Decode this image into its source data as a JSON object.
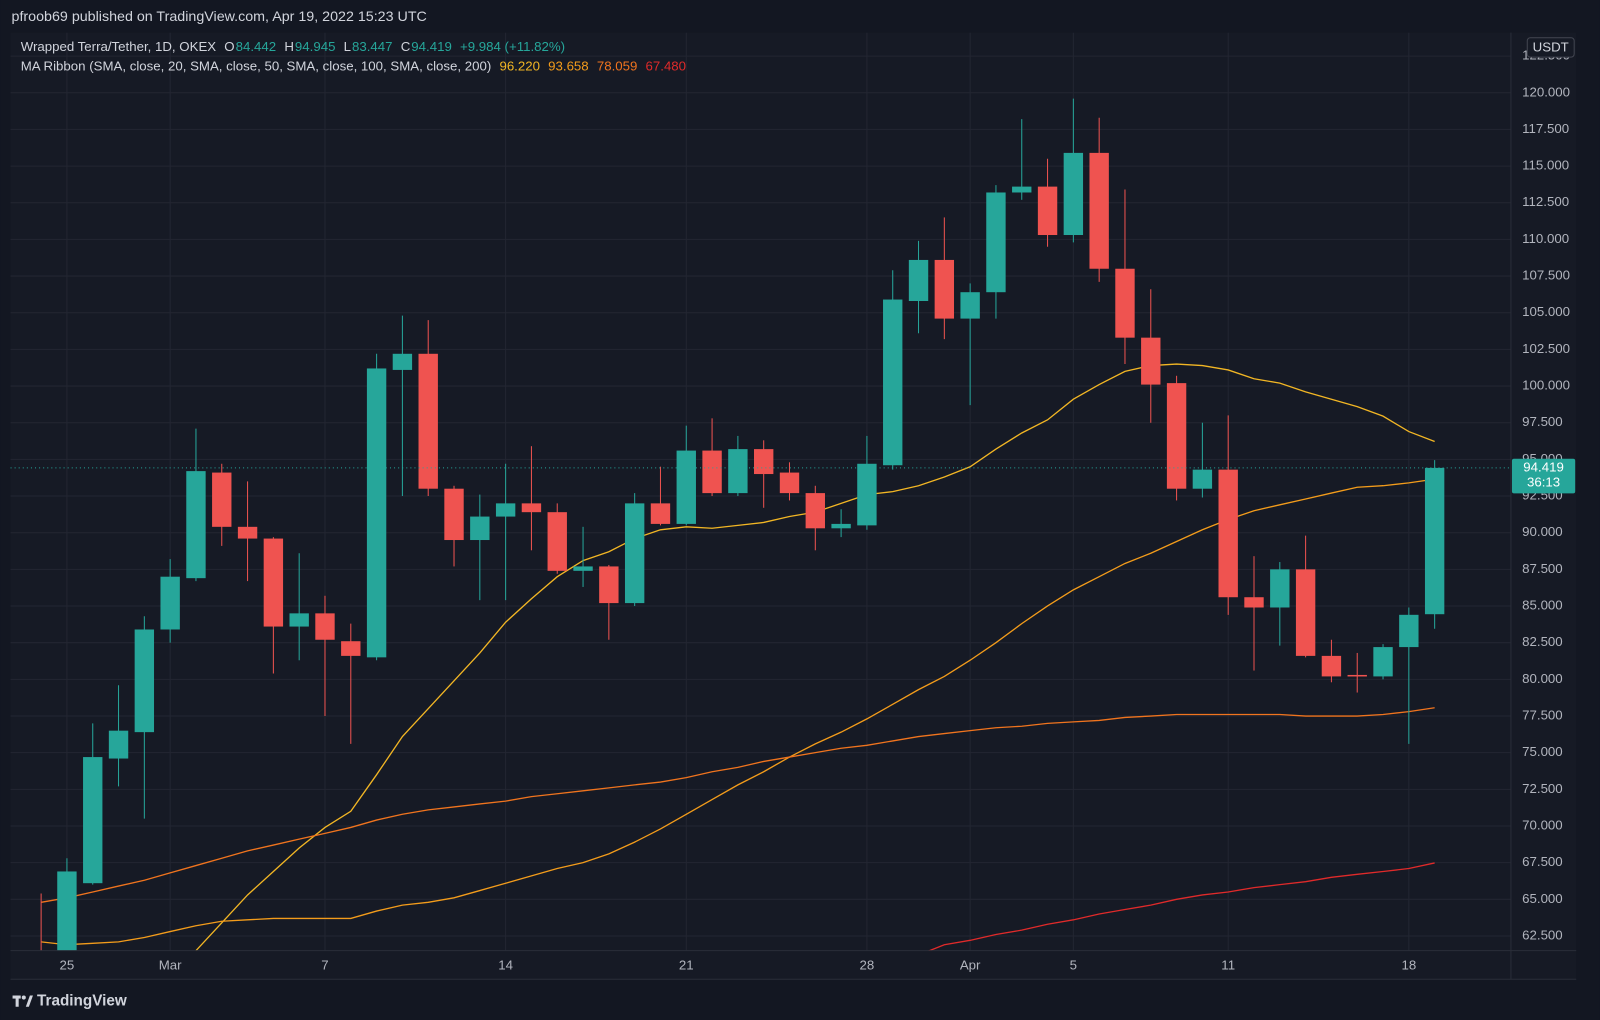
{
  "header": {
    "published": "pfroob69 published on TradingView.com, Apr 19, 2022 15:23 UTC"
  },
  "footer": {
    "brand": "TradingView"
  },
  "chart_data": {
    "type": "candlestick",
    "title": "Wrapped Terra/Tether, 1D, OKEX",
    "ohlc_letters": [
      "O",
      "H",
      "L",
      "C"
    ],
    "change_label": "+9.984 (+11.82%)",
    "indicator_title": "MA Ribbon (SMA, close, 20, SMA, close, 50, SMA, close, 100, SMA, close, 200)",
    "currency": "USDT",
    "countdown": "36:13",
    "categories": [
      null,
      "25",
      null,
      null,
      null,
      "Mar",
      null,
      null,
      null,
      null,
      null,
      "7",
      null,
      null,
      null,
      null,
      null,
      null,
      "14",
      null,
      null,
      null,
      null,
      null,
      null,
      "21",
      null,
      null,
      null,
      null,
      null,
      null,
      "28",
      null,
      null,
      null,
      "Apr",
      null,
      null,
      null,
      "5",
      null,
      null,
      null,
      null,
      null,
      "11",
      null,
      null,
      null,
      null,
      null,
      null,
      "18",
      null
    ],
    "open": [
      61.5,
      60.0,
      66.1,
      74.6,
      76.4,
      83.4,
      86.9,
      94.1,
      90.4,
      89.6,
      83.6,
      84.5,
      82.6,
      81.5,
      101.1,
      102.2,
      93.0,
      89.5,
      91.1,
      92.0,
      91.4,
      87.4,
      87.7,
      85.2,
      92.0,
      90.6,
      95.6,
      92.7,
      95.7,
      94.1,
      92.7,
      90.3,
      90.5,
      94.6,
      105.8,
      108.6,
      104.6,
      106.4,
      113.2,
      113.6,
      110.3,
      115.9,
      108.0,
      103.3,
      100.2,
      93.0,
      94.3,
      85.6,
      84.9,
      87.5,
      81.6,
      80.3,
      80.2,
      82.2,
      84.442
    ],
    "high": [
      65.4,
      67.8,
      77.0,
      79.6,
      84.3,
      88.2,
      97.1,
      94.7,
      93.5,
      89.7,
      88.6,
      85.7,
      83.8,
      102.2,
      104.8,
      104.5,
      93.2,
      92.6,
      94.7,
      95.9,
      92.0,
      90.4,
      87.8,
      92.7,
      94.5,
      97.3,
      97.8,
      96.6,
      96.3,
      94.8,
      93.2,
      91.6,
      96.6,
      107.9,
      109.9,
      111.5,
      107.0,
      113.7,
      118.2,
      115.5,
      119.6,
      118.3,
      113.4,
      106.6,
      100.7,
      97.5,
      98.0,
      88.4,
      88.0,
      89.8,
      82.7,
      81.8,
      82.4,
      84.9,
      94.945
    ],
    "low": [
      58.0,
      58.5,
      66.0,
      72.7,
      70.5,
      82.5,
      86.7,
      89.1,
      86.7,
      80.4,
      81.3,
      77.5,
      75.6,
      81.3,
      92.5,
      92.5,
      87.7,
      85.4,
      85.4,
      88.8,
      87.2,
      86.3,
      82.7,
      85.0,
      90.5,
      90.5,
      92.5,
      92.5,
      91.7,
      92.2,
      88.8,
      89.7,
      90.2,
      94.3,
      103.6,
      103.2,
      98.7,
      104.6,
      112.7,
      109.5,
      109.8,
      107.1,
      101.5,
      97.5,
      92.2,
      92.4,
      84.4,
      80.6,
      82.3,
      81.5,
      79.8,
      79.1,
      80.0,
      75.6,
      83.447
    ],
    "close": [
      60.5,
      66.9,
      74.7,
      76.5,
      83.4,
      87.0,
      94.2,
      90.4,
      89.6,
      83.6,
      84.5,
      82.7,
      81.6,
      101.2,
      102.2,
      93.0,
      89.5,
      91.1,
      92.0,
      91.4,
      87.4,
      87.7,
      85.2,
      92.0,
      90.6,
      95.6,
      92.7,
      95.7,
      94.0,
      92.7,
      90.3,
      90.6,
      94.7,
      105.9,
      108.6,
      104.6,
      106.4,
      113.2,
      113.6,
      110.3,
      115.9,
      108.0,
      103.3,
      100.1,
      93.0,
      94.3,
      85.6,
      84.9,
      87.5,
      81.6,
      80.2,
      80.2,
      82.2,
      84.4,
      94.419
    ],
    "up_color": "#26a69a",
    "down_color": "#ef5350",
    "series": [
      {
        "color": "#f2b624",
        "legend_value": "96.220",
        "values": [
          null,
          null,
          null,
          null,
          null,
          null,
          61.5,
          63.4,
          65.3,
          66.9,
          68.5,
          69.9,
          71.0,
          73.5,
          76.1,
          78.0,
          79.9,
          81.8,
          83.9,
          85.5,
          87.0,
          88.1,
          88.7,
          89.6,
          90.2,
          90.4,
          90.3,
          90.5,
          90.7,
          91.1,
          91.4,
          92.0,
          92.6,
          92.8,
          93.2,
          93.8,
          94.5,
          95.7,
          96.8,
          97.7,
          99.1,
          100.1,
          101.0,
          101.4,
          101.5,
          101.4,
          101.1,
          100.5,
          100.2,
          99.6,
          99.1,
          98.6,
          97.95,
          96.9,
          96.22
        ]
      },
      {
        "color": "#f39c1b",
        "legend_value": "93.658",
        "values": [
          62.1,
          61.9,
          62.0,
          62.1,
          62.4,
          62.8,
          63.2,
          63.5,
          63.6,
          63.7,
          63.7,
          63.7,
          63.7,
          64.2,
          64.6,
          64.8,
          65.1,
          65.6,
          66.1,
          66.6,
          67.1,
          67.5,
          68.1,
          68.9,
          69.8,
          70.8,
          71.8,
          72.8,
          73.7,
          74.7,
          75.6,
          76.4,
          77.3,
          78.3,
          79.3,
          80.2,
          81.3,
          82.5,
          83.8,
          85.0,
          86.1,
          87.0,
          87.9,
          88.6,
          89.4,
          90.2,
          90.9,
          91.5,
          91.9,
          92.3,
          92.7,
          93.1,
          93.2,
          93.4,
          93.658
        ]
      },
      {
        "color": "#f0741e",
        "legend_value": "78.059",
        "values": [
          64.8,
          65.1,
          65.5,
          65.9,
          66.3,
          66.8,
          67.3,
          67.8,
          68.3,
          68.7,
          69.1,
          69.5,
          69.9,
          70.4,
          70.8,
          71.1,
          71.3,
          71.5,
          71.7,
          72.0,
          72.2,
          72.4,
          72.6,
          72.8,
          73.0,
          73.3,
          73.7,
          74.0,
          74.4,
          74.7,
          75.0,
          75.3,
          75.5,
          75.8,
          76.1,
          76.3,
          76.5,
          76.7,
          76.8,
          77.0,
          77.1,
          77.2,
          77.4,
          77.5,
          77.6,
          77.6,
          77.6,
          77.6,
          77.6,
          77.5,
          77.5,
          77.5,
          77.6,
          77.8,
          78.059
        ]
      },
      {
        "color": "#e02a2a",
        "legend_value": "67.480",
        "values": [
          null,
          null,
          null,
          null,
          null,
          null,
          null,
          null,
          null,
          null,
          null,
          null,
          null,
          null,
          null,
          null,
          null,
          null,
          null,
          null,
          null,
          null,
          null,
          null,
          null,
          null,
          null,
          null,
          null,
          null,
          null,
          null,
          null,
          null,
          61.2,
          61.9,
          62.2,
          62.6,
          62.9,
          63.3,
          63.6,
          64.0,
          64.3,
          64.6,
          65.0,
          65.3,
          65.5,
          65.8,
          66.0,
          66.2,
          66.5,
          66.7,
          66.9,
          67.1,
          67.48
        ]
      }
    ],
    "ylim": [
      61.5,
      124.1
    ],
    "yticks": [
      {
        "value": 62.5,
        "label": "62.500"
      },
      {
        "value": 65,
        "label": "65.000"
      },
      {
        "value": 67.5,
        "label": "67.500"
      },
      {
        "value": 70,
        "label": "70.000"
      },
      {
        "value": 72.5,
        "label": "72.500"
      },
      {
        "value": 75,
        "label": "75.000"
      },
      {
        "value": 77.5,
        "label": "77.500"
      },
      {
        "value": 80,
        "label": "80.000"
      },
      {
        "value": 82.5,
        "label": "82.500"
      },
      {
        "value": 85,
        "label": "85.000"
      },
      {
        "value": 87.5,
        "label": "87.500"
      },
      {
        "value": 90,
        "label": "90.000"
      },
      {
        "value": 92.5,
        "label": "92.500"
      },
      {
        "value": 95,
        "label": "95.000"
      },
      {
        "value": 97.5,
        "label": "97.500"
      },
      {
        "value": 100,
        "label": "100.000"
      },
      {
        "value": 102.5,
        "label": "102.500"
      },
      {
        "value": 105,
        "label": "105.000"
      },
      {
        "value": 107.5,
        "label": "107.500"
      },
      {
        "value": 110,
        "label": "110.000"
      },
      {
        "value": 112.5,
        "label": "112.500"
      },
      {
        "value": 115,
        "label": "115.000"
      },
      {
        "value": 117.5,
        "label": "117.500"
      },
      {
        "value": 120,
        "label": "120.000"
      },
      {
        "value": 122.5,
        "label": "122.500"
      }
    ],
    "grid": true
  }
}
